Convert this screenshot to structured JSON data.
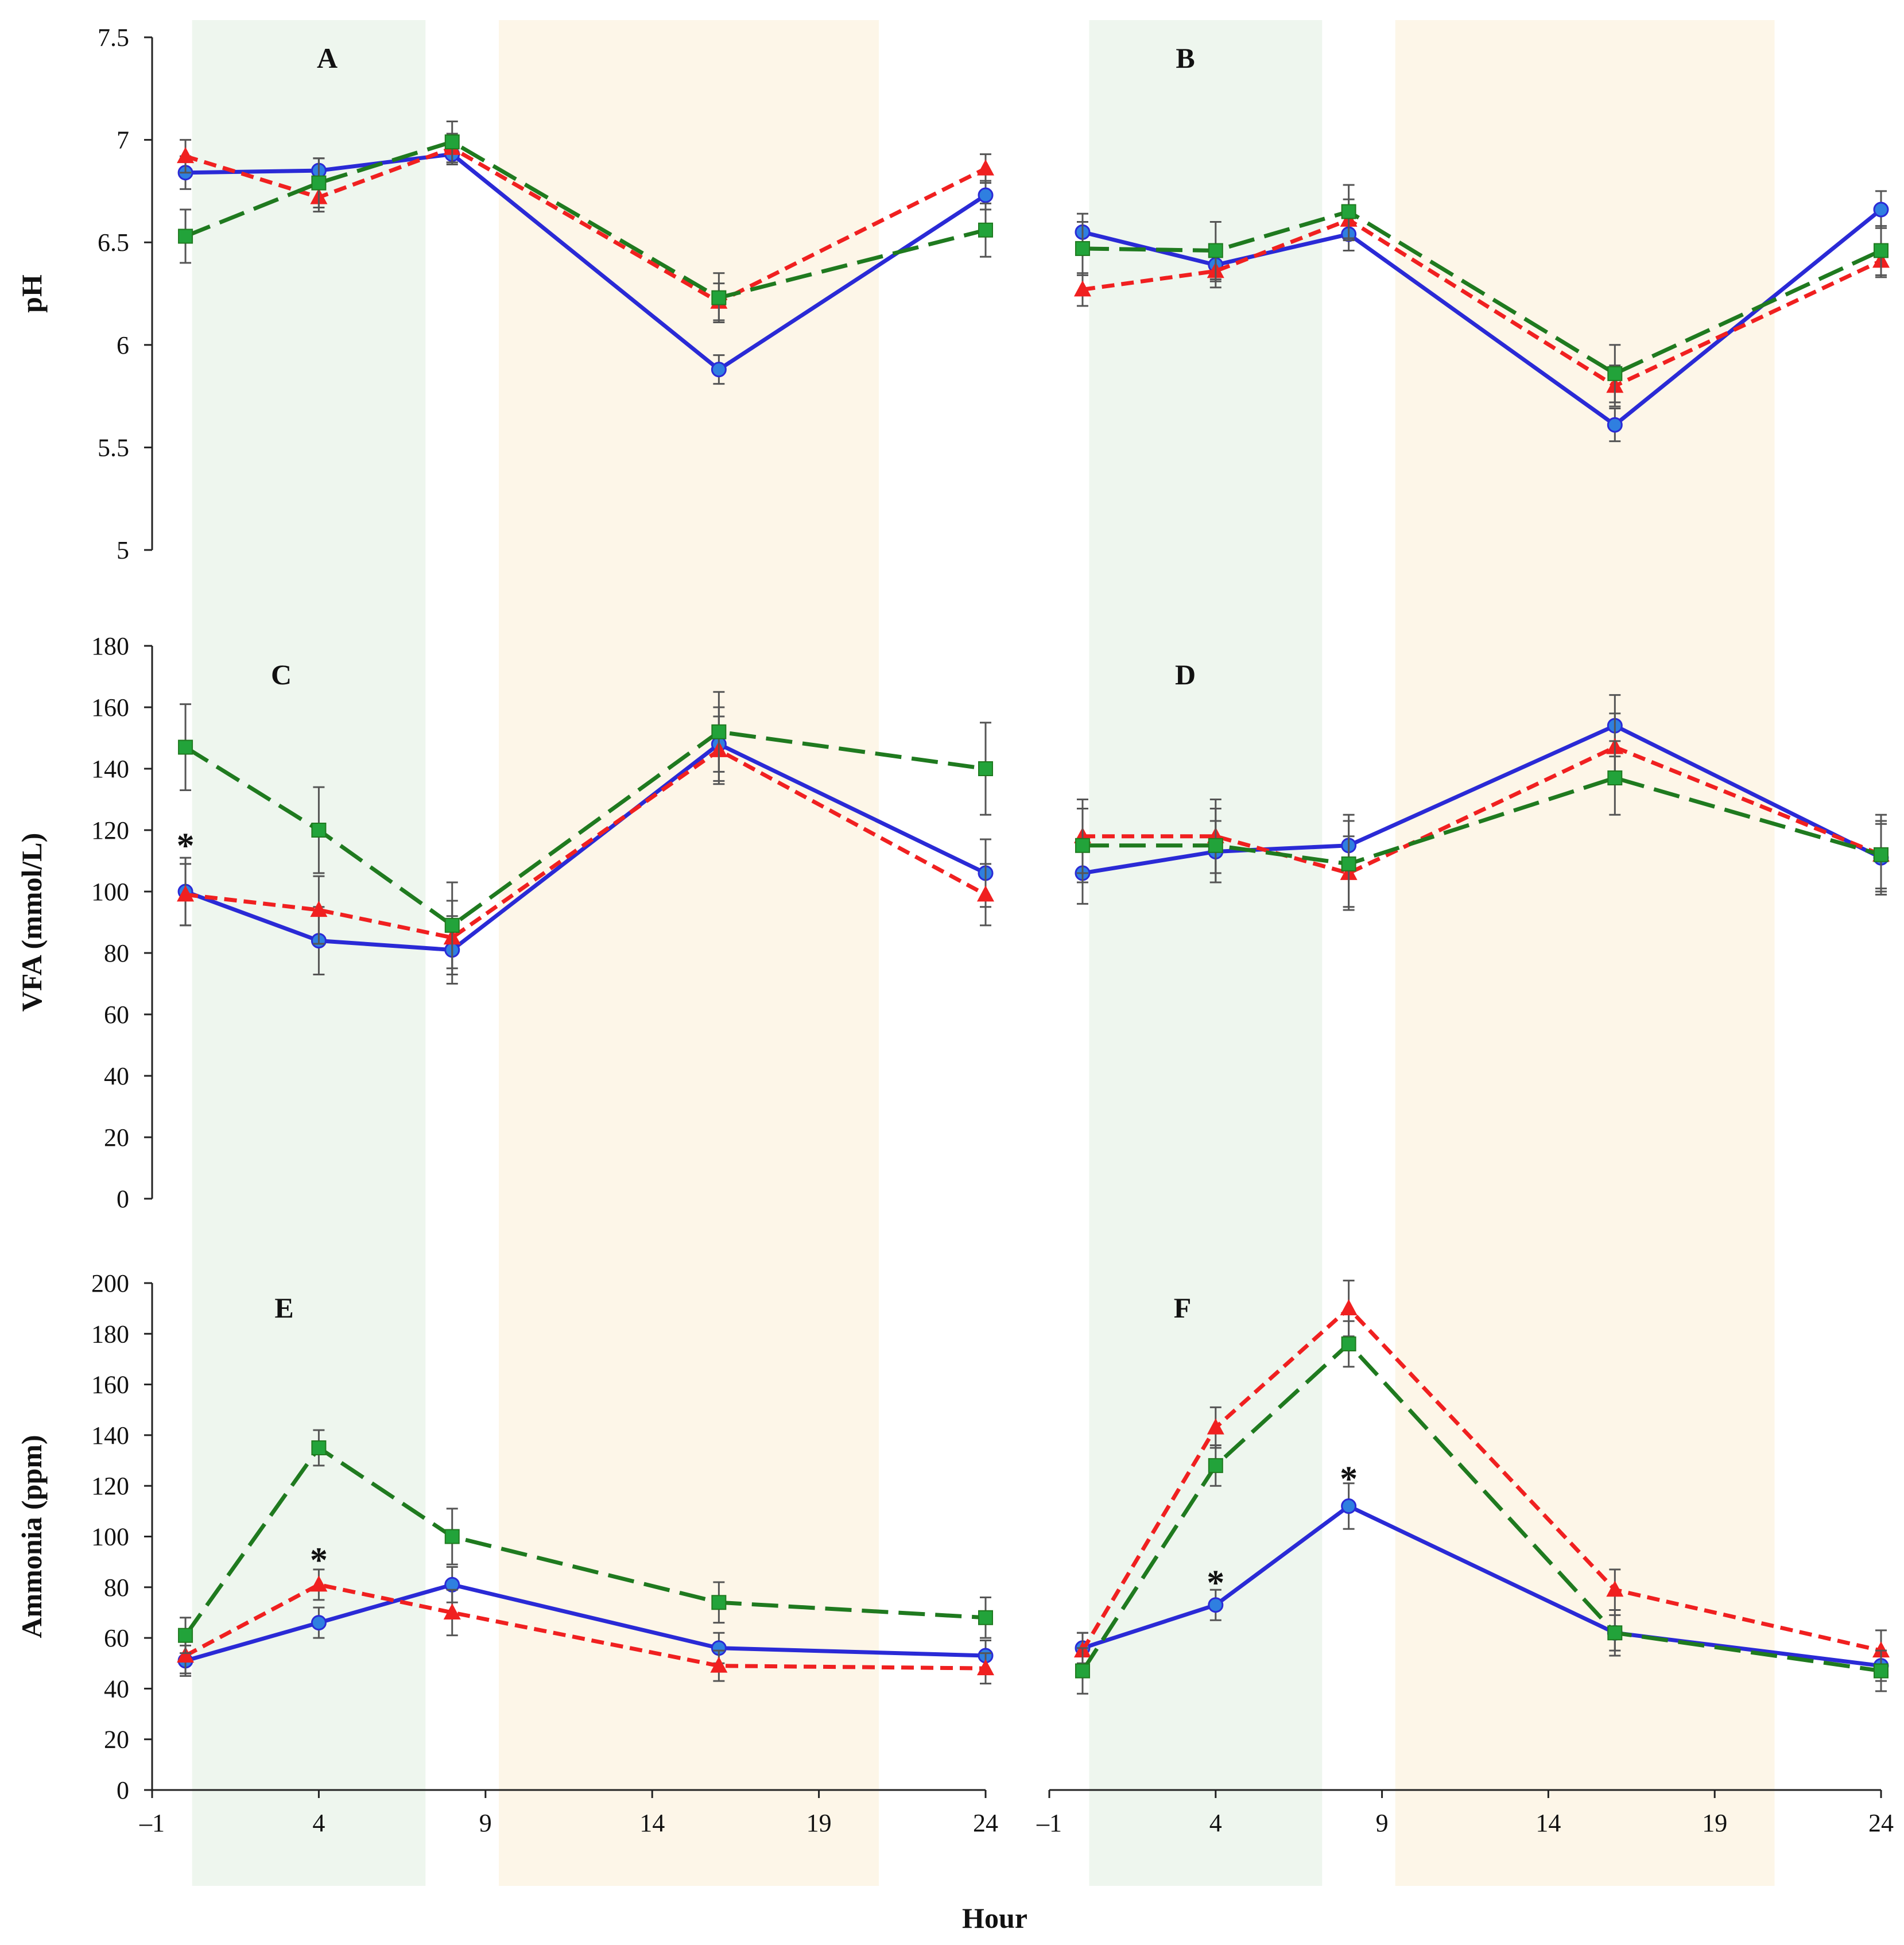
{
  "figure": {
    "x_axis_label": "Hour",
    "x_tick_labels": [
      "–1",
      "4",
      "9",
      "14",
      "19",
      "24"
    ],
    "x_range": [
      -1,
      24
    ],
    "shaded_regions": [
      {
        "name": "green-band",
        "x_start": 0.2,
        "x_end": 7.2,
        "color": "#eef6ee"
      },
      {
        "name": "yellow-band",
        "x_start": 9.4,
        "x_end": 20.8,
        "color": "#fdf6e8"
      }
    ],
    "series_styles": [
      {
        "name": "blue-circle",
        "color": "#2a2ad6",
        "marker": "circle",
        "dash": "solid"
      },
      {
        "name": "red-triangle",
        "color": "#f02020",
        "marker": "triangle",
        "dash": "short-dash"
      },
      {
        "name": "green-square",
        "color": "#1f7a1f",
        "marker": "square",
        "dash": "long-dash"
      }
    ]
  },
  "chart_data": [
    {
      "panel": "A",
      "type": "line",
      "ylabel": "pH",
      "ylim": [
        5,
        7.5
      ],
      "y_tick_labels": [
        "5",
        "5.5",
        "6",
        "6.5",
        "7",
        "7.5"
      ],
      "x": [
        0,
        4,
        8,
        16,
        24
      ],
      "series": [
        {
          "name": "blue-circle",
          "values": [
            6.84,
            6.85,
            6.93,
            5.88,
            6.73
          ],
          "errors": [
            0.08,
            0.06,
            0.05,
            0.07,
            0.07
          ]
        },
        {
          "name": "red-triangle",
          "values": [
            6.92,
            6.72,
            6.96,
            6.21,
            6.86
          ],
          "errors": [
            0.08,
            0.07,
            0.07,
            0.09,
            0.07
          ]
        },
        {
          "name": "green-square",
          "values": [
            6.53,
            6.79,
            6.99,
            6.23,
            6.56
          ],
          "errors": [
            0.13,
            0.12,
            0.1,
            0.12,
            0.13
          ]
        }
      ],
      "annotations": []
    },
    {
      "panel": "B",
      "type": "line",
      "ylabel": "",
      "ylim": [
        5,
        7.5
      ],
      "y_tick_labels": [],
      "x": [
        0,
        4,
        8,
        16,
        24
      ],
      "series": [
        {
          "name": "blue-circle",
          "values": [
            6.55,
            6.39,
            6.54,
            5.61,
            6.66
          ],
          "errors": [
            0.09,
            0.08,
            0.08,
            0.08,
            0.09
          ]
        },
        {
          "name": "red-triangle",
          "values": [
            6.27,
            6.36,
            6.61,
            5.8,
            6.41
          ],
          "errors": [
            0.08,
            0.08,
            0.1,
            0.1,
            0.08
          ]
        },
        {
          "name": "green-square",
          "values": [
            6.47,
            6.46,
            6.65,
            5.86,
            6.46
          ],
          "errors": [
            0.13,
            0.14,
            0.13,
            0.14,
            0.12
          ]
        }
      ],
      "annotations": []
    },
    {
      "panel": "C",
      "type": "line",
      "ylabel": "VFA (mmol/L)",
      "ylim": [
        0,
        180
      ],
      "y_tick_labels": [
        "0",
        "20",
        "40",
        "60",
        "80",
        "100",
        "120",
        "140",
        "160",
        "180"
      ],
      "x": [
        0,
        4,
        8,
        16,
        24
      ],
      "series": [
        {
          "name": "blue-circle",
          "values": [
            100,
            84,
            81,
            148,
            106
          ],
          "errors": [
            11,
            11,
            11,
            12,
            11
          ]
        },
        {
          "name": "red-triangle",
          "values": [
            99,
            94,
            85,
            146,
            99
          ],
          "errors": [
            10,
            11,
            12,
            11,
            10
          ]
        },
        {
          "name": "green-square",
          "values": [
            147,
            120,
            89,
            152,
            140
          ],
          "errors": [
            14,
            14,
            14,
            13,
            15
          ]
        }
      ],
      "annotations": [
        {
          "text": "*",
          "x": 0,
          "y": 116
        }
      ]
    },
    {
      "panel": "D",
      "type": "line",
      "ylabel": "",
      "ylim": [
        0,
        180
      ],
      "y_tick_labels": [],
      "x": [
        0,
        4,
        8,
        16,
        24
      ],
      "series": [
        {
          "name": "blue-circle",
          "values": [
            106,
            113,
            115,
            154,
            111
          ],
          "errors": [
            10,
            10,
            10,
            10,
            11
          ]
        },
        {
          "name": "red-triangle",
          "values": [
            118,
            118,
            106,
            147,
            112
          ],
          "errors": [
            12,
            12,
            12,
            11,
            11
          ]
        },
        {
          "name": "green-square",
          "values": [
            115,
            115,
            109,
            137,
            112
          ],
          "errors": [
            12,
            12,
            14,
            12,
            13
          ]
        }
      ],
      "annotations": []
    },
    {
      "panel": "E",
      "type": "line",
      "ylabel": "Ammonia (ppm)",
      "ylim": [
        0,
        200
      ],
      "y_tick_labels": [
        "0",
        "20",
        "40",
        "60",
        "80",
        "100",
        "120",
        "140",
        "160",
        "180",
        "200"
      ],
      "x": [
        0,
        4,
        8,
        16,
        24
      ],
      "series": [
        {
          "name": "blue-circle",
          "values": [
            51,
            66,
            81,
            56,
            53
          ],
          "errors": [
            6,
            6,
            7,
            6,
            6
          ]
        },
        {
          "name": "red-triangle",
          "values": [
            53,
            81,
            70,
            49,
            48
          ],
          "errors": [
            7,
            6,
            9,
            6,
            6
          ]
        },
        {
          "name": "green-square",
          "values": [
            61,
            135,
            100,
            74,
            68
          ],
          "errors": [
            7,
            7,
            11,
            8,
            8
          ]
        }
      ],
      "annotations": [
        {
          "text": "*",
          "x": 4,
          "y": 92
        }
      ]
    },
    {
      "panel": "F",
      "type": "line",
      "ylabel": "",
      "ylim": [
        0,
        200
      ],
      "y_tick_labels": [],
      "x": [
        0,
        4,
        8,
        16,
        24
      ],
      "series": [
        {
          "name": "blue-circle",
          "values": [
            56,
            73,
            112,
            62,
            49
          ],
          "errors": [
            6,
            6,
            9,
            7,
            6
          ]
        },
        {
          "name": "red-triangle",
          "values": [
            55,
            143,
            190,
            79,
            55
          ],
          "errors": [
            7,
            8,
            11,
            8,
            8
          ]
        },
        {
          "name": "green-square",
          "values": [
            47,
            128,
            176,
            62,
            47
          ],
          "errors": [
            9,
            8,
            9,
            9,
            8
          ]
        }
      ],
      "annotations": [
        {
          "text": "*",
          "x": 4,
          "y": 83
        },
        {
          "text": "*",
          "x": 8,
          "y": 124
        }
      ]
    }
  ]
}
